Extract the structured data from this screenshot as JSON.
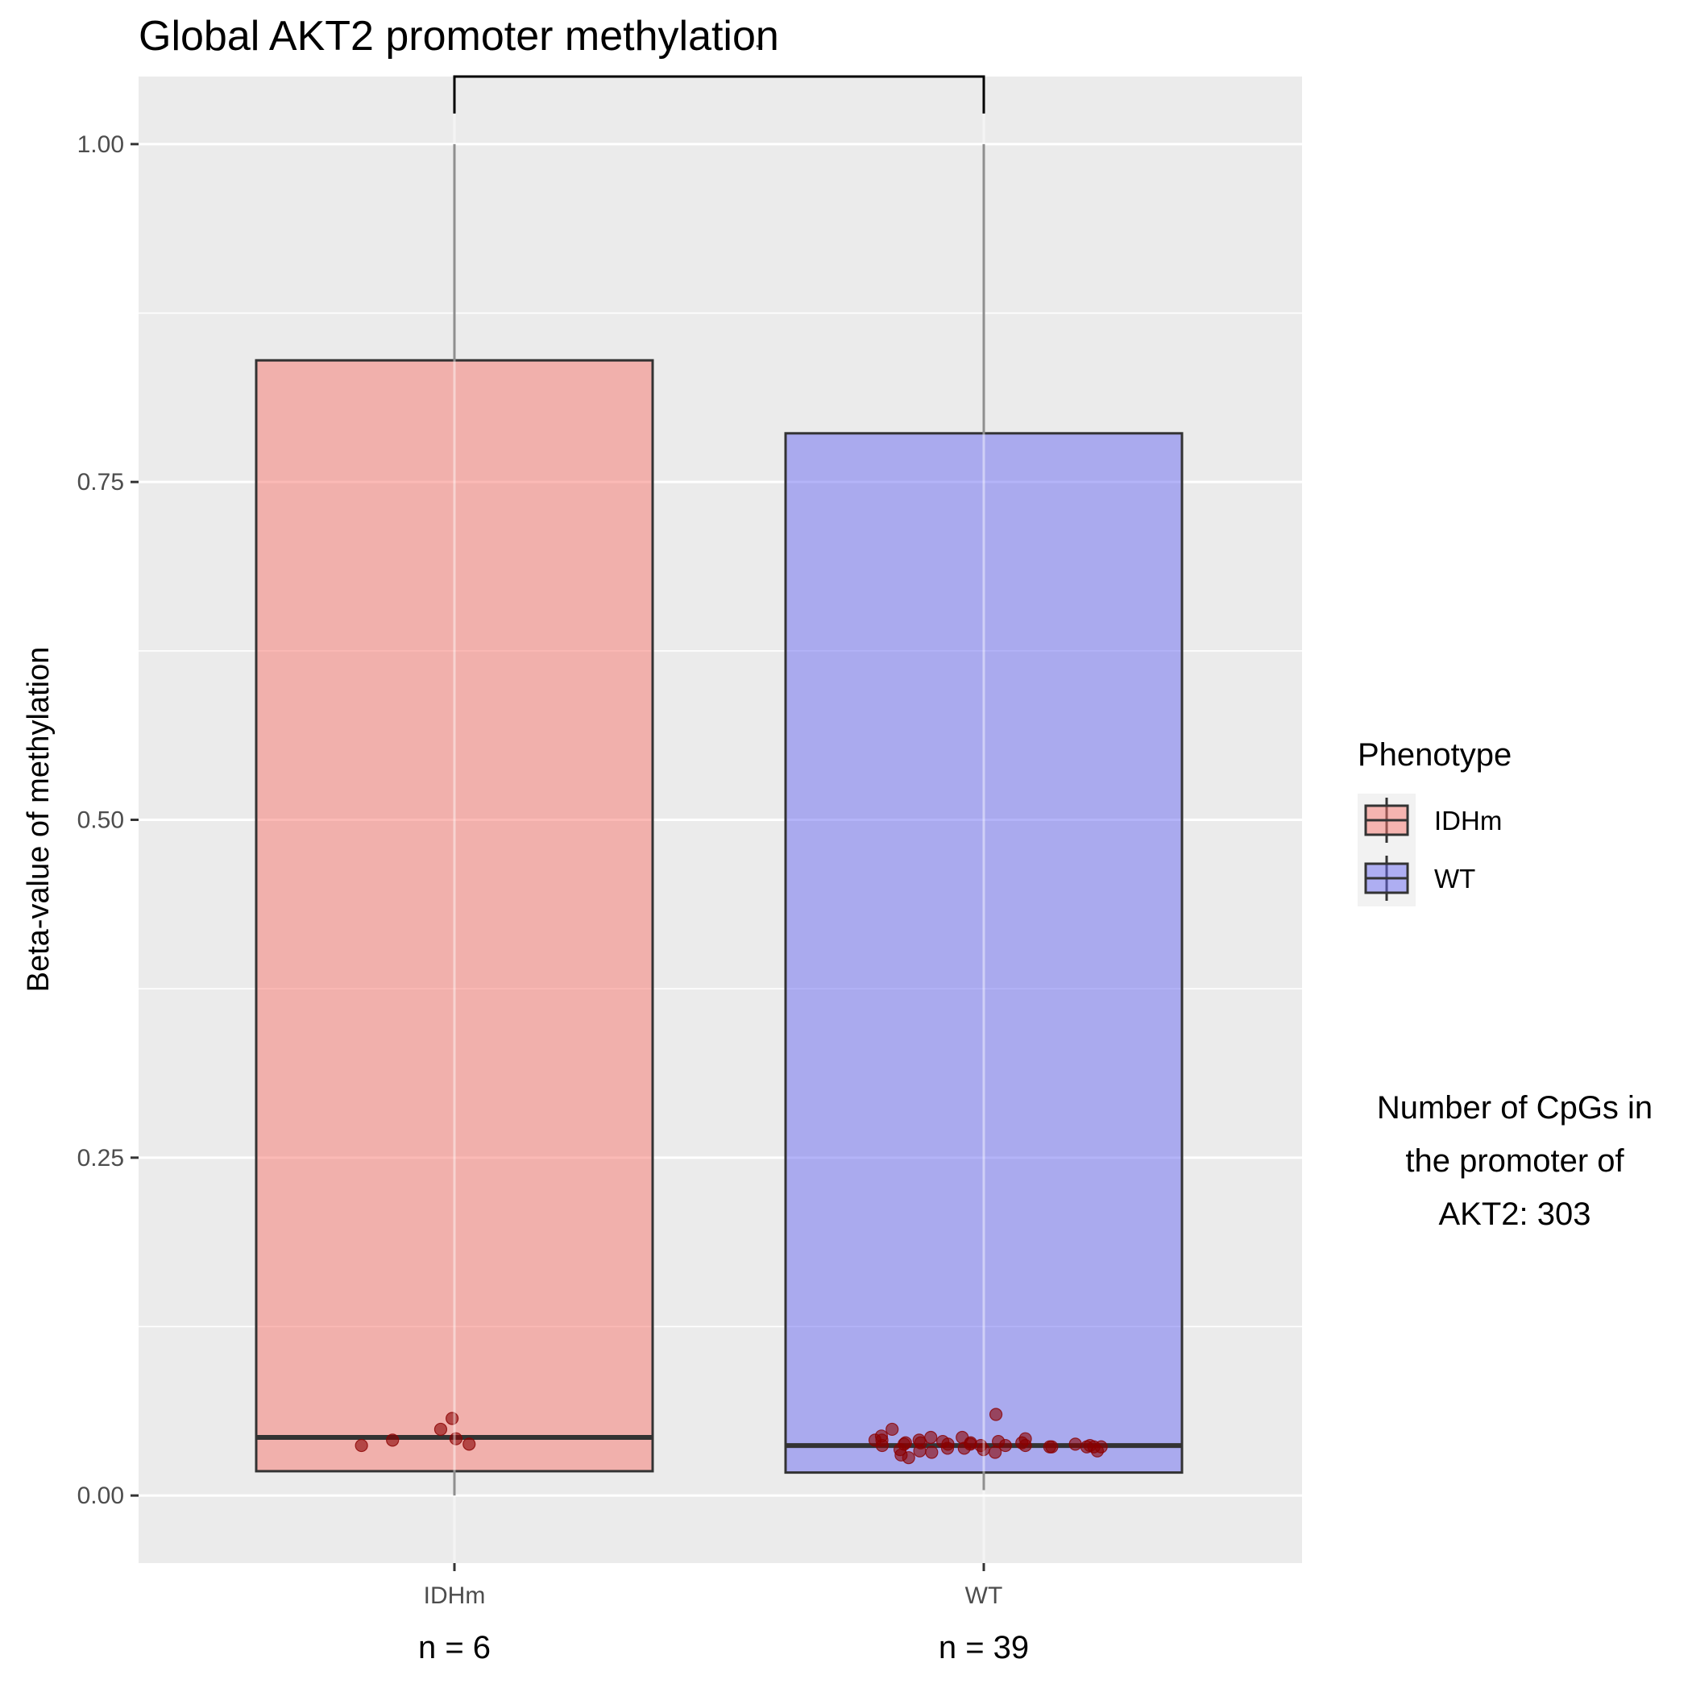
{
  "chart_data": {
    "type": "boxplot",
    "title": "Global AKT2 promoter methylation",
    "xlabel": "",
    "ylabel": "Beta-value of methylation",
    "ylim": [
      -0.05,
      1.05
    ],
    "yticks": [
      "0.00",
      "0.25",
      "0.50",
      "0.75",
      "1.00"
    ],
    "grid": true,
    "categories": [
      "IDHm",
      "WT"
    ],
    "boxes": [
      {
        "category": "IDHm",
        "color": "#F8766D",
        "whisker_low": 0.0,
        "q1": 0.018,
        "median": 0.043,
        "q3": 0.84,
        "whisker_high": 1.0
      },
      {
        "category": "WT",
        "color": "#6A6AF2",
        "whisker_low": 0.004,
        "q1": 0.017,
        "median": 0.037,
        "q3": 0.786,
        "whisker_high": 1.0
      }
    ],
    "points": [
      {
        "category": "IDHm",
        "y": [
          0.057,
          0.038,
          0.037,
          0.041,
          0.049,
          0.042
        ]
      },
      {
        "category": "WT",
        "y": [
          0.041,
          0.038,
          0.037,
          0.043,
          0.032,
          0.036,
          0.039,
          0.044,
          0.034,
          0.033,
          0.042,
          0.03,
          0.04,
          0.037,
          0.039,
          0.041,
          0.037,
          0.033,
          0.049,
          0.038,
          0.036,
          0.028,
          0.035,
          0.06,
          0.037,
          0.043,
          0.038,
          0.036,
          0.039,
          0.041,
          0.032,
          0.04,
          0.034,
          0.036,
          0.038,
          0.035,
          0.037,
          0.036,
          0.039
        ]
      }
    ],
    "point_color": "#8B0000",
    "counts": [
      "n = 6",
      "n = 39"
    ],
    "significance_bracket": {
      "from": "IDHm",
      "to": "WT",
      "y": 1.05,
      "label": "-"
    },
    "legend": {
      "title": "Phenotype",
      "placement": "right",
      "entries": [
        {
          "label": "IDHm",
          "color": "#F8766D"
        },
        {
          "label": "WT",
          "color": "#6A6AF2"
        }
      ]
    },
    "note_lines": [
      "Number of CpGs in",
      "the promoter of",
      "AKT2: 303"
    ]
  }
}
